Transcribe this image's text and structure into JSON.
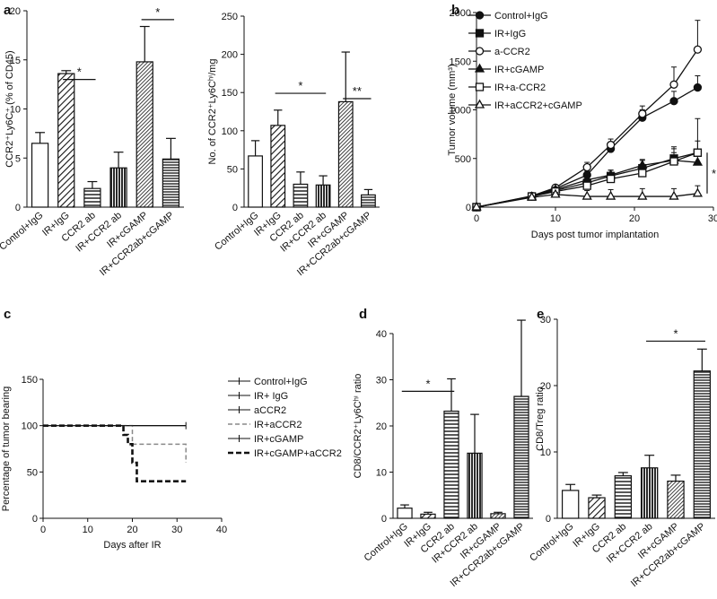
{
  "panels": [
    {
      "id": "a",
      "letter": "a"
    },
    {
      "id": "b",
      "letter": "b"
    },
    {
      "id": "c",
      "letter": "c"
    },
    {
      "id": "d",
      "letter": "d"
    },
    {
      "id": "e",
      "letter": "e"
    }
  ],
  "chart_data": [
    {
      "id": "a1",
      "type": "bar",
      "panel": "a",
      "ylabel": "CCR2⁺Ly6C⁺ (% of CD45)",
      "ylim": [
        0,
        20
      ],
      "yticks": [
        0,
        5,
        10,
        15,
        20
      ],
      "categories": [
        "Control+IgG",
        "IR+IgG",
        "CCR2 ab",
        "IR+CCR2 ab",
        "IR+cGAMP",
        "IR+CCR2ab+cGAMP"
      ],
      "values": [
        6.5,
        13.6,
        1.9,
        4.0,
        14.8,
        4.9
      ],
      "errors": [
        1.1,
        0.3,
        0.7,
        1.6,
        3.6,
        2.1
      ],
      "patterns": [
        "none",
        "diag",
        "hlines",
        "vlines",
        "diag-fine",
        "hlines-dense"
      ],
      "significance": [
        {
          "from": 1,
          "to": 2,
          "y": 13.0,
          "label": "*"
        },
        {
          "from": 4,
          "to": 5,
          "y": 19.1,
          "label": "*"
        }
      ]
    },
    {
      "id": "a2",
      "type": "bar",
      "panel": "a",
      "ylabel": "No. of CCR2⁺Ly6Cʰⁱ/mg",
      "ylim": [
        0,
        250
      ],
      "yticks": [
        0,
        50,
        100,
        150,
        200,
        250
      ],
      "categories": [
        "Control+IgG",
        "IR+IgG",
        "CCR2 ab",
        "IR+CCR2 ab",
        "IR+cGAMP",
        "IR+CCR2ab+cGAMP"
      ],
      "values": [
        67,
        107,
        30,
        29,
        138,
        16
      ],
      "errors": [
        20,
        20,
        16,
        12,
        65,
        7
      ],
      "patterns": [
        "none",
        "diag",
        "hlines",
        "vlines",
        "diag-fine",
        "hlines-dense"
      ],
      "significance": [
        {
          "from": 1,
          "to": 3,
          "y": 149,
          "label": "*"
        },
        {
          "from": 4,
          "to": 5,
          "y": 142,
          "label": "**"
        }
      ]
    },
    {
      "id": "b",
      "type": "line",
      "panel": "b",
      "xlabel": "Days post tumor implantation",
      "ylabel": "Tumor volume (mm³)",
      "xlim": [
        0,
        30
      ],
      "ylim": [
        0,
        2000
      ],
      "xticks": [
        0,
        10,
        20,
        30
      ],
      "yticks": [
        0,
        500,
        1000,
        1500,
        2000
      ],
      "x": [
        0,
        7,
        10,
        14,
        17,
        21,
        25,
        28
      ],
      "series": [
        {
          "name": "Control+IgG",
          "marker": "filled-circle",
          "values": [
            0,
            110,
            190,
            330,
            600,
            920,
            1090,
            1230
          ],
          "errors": [
            0,
            20,
            20,
            40,
            50,
            80,
            100,
            120
          ]
        },
        {
          "name": "IR+IgG",
          "marker": "filled-square",
          "values": [
            0,
            110,
            170,
            250,
            320,
            400,
            500,
            560
          ],
          "errors": [
            0,
            20,
            30,
            40,
            60,
            80,
            100,
            120
          ]
        },
        {
          "name": "a-CCR2",
          "marker": "open-circle",
          "values": [
            0,
            115,
            200,
            410,
            640,
            960,
            1260,
            1620
          ],
          "errors": [
            0,
            20,
            25,
            50,
            60,
            80,
            180,
            300
          ]
        },
        {
          "name": "IR+cGAMP",
          "marker": "filled-triangle",
          "values": [
            0,
            105,
            180,
            280,
            330,
            430,
            480,
            460
          ],
          "errors": [
            0,
            15,
            25,
            40,
            50,
            60,
            80,
            100
          ]
        },
        {
          "name": "IR+a-CCR2",
          "marker": "open-square",
          "values": [
            0,
            110,
            160,
            220,
            290,
            350,
            470,
            560
          ],
          "errors": [
            0,
            15,
            20,
            40,
            50,
            80,
            150,
            350
          ]
        },
        {
          "name": "IR+aCCR2+cGAMP",
          "marker": "open-triangle",
          "values": [
            0,
            100,
            130,
            110,
            110,
            110,
            110,
            140
          ],
          "errors": [
            0,
            15,
            20,
            60,
            70,
            80,
            80,
            80
          ]
        }
      ],
      "significance": [
        {
          "label": "*"
        }
      ]
    },
    {
      "id": "c",
      "type": "line",
      "panel": "c",
      "xlabel": "Days after IR",
      "ylabel": "Percentage of tumor bearing",
      "xlim": [
        0,
        40
      ],
      "ylim": [
        0,
        150
      ],
      "xticks": [
        0,
        10,
        20,
        30,
        40
      ],
      "yticks": [
        0,
        50,
        100,
        150
      ],
      "series": [
        {
          "name": "Control+IgG",
          "style": "solid-thin",
          "x": [
            0,
            32
          ],
          "values": [
            100,
            100
          ]
        },
        {
          "name": "IR+ IgG",
          "style": "solid-thin",
          "x": [
            0,
            32
          ],
          "values": [
            100,
            100
          ]
        },
        {
          "name": "aCCR2",
          "style": "solid-thin",
          "x": [
            0,
            32
          ],
          "values": [
            100,
            100
          ]
        },
        {
          "name": "IR+aCCR2",
          "style": "gray-dashed",
          "x": [
            0,
            20,
            20,
            21,
            21,
            32,
            32
          ],
          "values": [
            100,
            100,
            80,
            80,
            80,
            80,
            60
          ]
        },
        {
          "name": "IR+cGAMP",
          "style": "solid-thin",
          "x": [
            0,
            32
          ],
          "values": [
            100,
            100
          ]
        },
        {
          "name": "IR+cGAMP+aCCR2",
          "style": "bold-dashed",
          "x": [
            0,
            18,
            18,
            19,
            19,
            20,
            20,
            21,
            21,
            32
          ],
          "values": [
            100,
            100,
            90,
            90,
            80,
            80,
            60,
            60,
            40,
            40
          ]
        }
      ]
    },
    {
      "id": "d",
      "type": "bar",
      "panel": "d",
      "ylabel": "CD8/CCR2⁺Ly6Cʰⁱ ratio",
      "ylim": [
        0,
        40
      ],
      "yticks": [
        0,
        10,
        20,
        30,
        40
      ],
      "categories": [
        "Control+IgG",
        "IR+IgG",
        "CCR2 ab",
        "IR+CCR2 ab",
        "IR+cGAMP",
        "IR+CCR2ab+cGAMP"
      ],
      "values": [
        2.2,
        0.9,
        23.2,
        14.1,
        1.0,
        26.4
      ],
      "errors": [
        0.7,
        0.4,
        7.0,
        8.4,
        0.3,
        16.5
      ],
      "patterns": [
        "none",
        "diag",
        "hlines",
        "vlines",
        "diag-fine",
        "hlines-dense"
      ],
      "significance": [
        {
          "from": 0,
          "to": 2,
          "y": 27.5,
          "label": "*"
        }
      ]
    },
    {
      "id": "e",
      "type": "bar",
      "panel": "e",
      "ylabel": "CD8/Treg ratio",
      "ylim": [
        0,
        30
      ],
      "yticks": [
        0,
        10,
        20,
        30
      ],
      "categories": [
        "Control+IgG",
        "IR+IgG",
        "CCR2 ab",
        "IR+CCR2 ab",
        "IR+cGAMP",
        "IR+CCR2ab+cGAMP"
      ],
      "values": [
        4.2,
        3.1,
        6.4,
        7.6,
        5.6,
        22.2
      ],
      "errors": [
        0.9,
        0.4,
        0.5,
        1.9,
        0.9,
        3.3
      ],
      "patterns": [
        "none",
        "diag",
        "hlines",
        "vlines",
        "diag-fine",
        "hlines-dense"
      ],
      "significance": [
        {
          "from": 3,
          "to": 5,
          "y": 26.7,
          "label": "*"
        }
      ]
    }
  ]
}
